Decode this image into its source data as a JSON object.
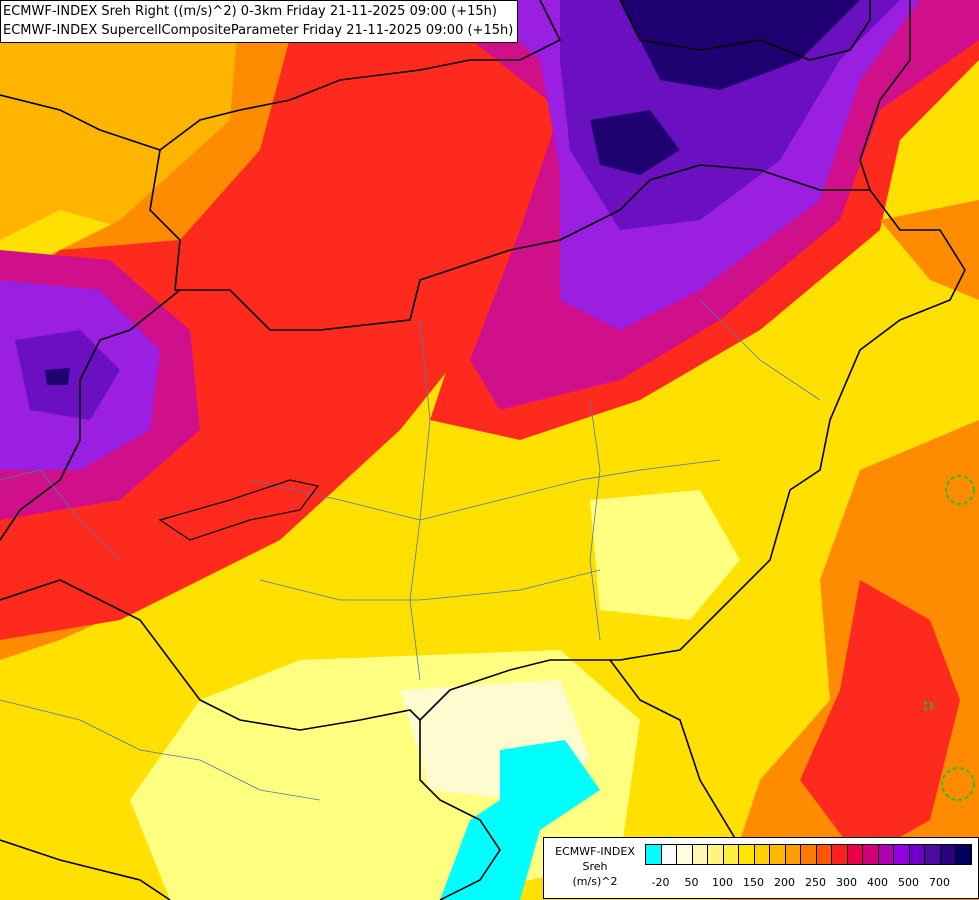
{
  "titles": {
    "line1": "ECMWF-INDEX Sreh Right ((m/s)^2) 0-3km Friday 21-11-2025 09:00 (+15h)",
    "line2": "ECMWF-INDEX SupercellCompositeParameter Friday 21-11-2025 09:00 (+15h)"
  },
  "legend": {
    "name_lines": [
      "ECMWF-INDEX",
      "Sreh",
      "(m/s)^2"
    ],
    "colors": [
      "#00ffff",
      "#ffffff",
      "#fffde0",
      "#fff8b0",
      "#fff480",
      "#ffee40",
      "#ffe600",
      "#ffd000",
      "#ffb800",
      "#ff9c00",
      "#ff7a00",
      "#ff5500",
      "#ff2020",
      "#e8004a",
      "#d0007a",
      "#b000b0",
      "#9000e0",
      "#7000c8",
      "#4b0aa0",
      "#2a0080",
      "#000060"
    ],
    "labels": [
      "-20",
      "50",
      "100",
      "150",
      "200",
      "250",
      "300",
      "400",
      "500",
      "700"
    ]
  },
  "map_colors": {
    "very_high": "#1e0070",
    "high": "#6a10c0",
    "violet": "#9a1fe0",
    "magenta": "#d0108a",
    "red": "#ff2a1e",
    "orange": "#ff8c00",
    "amber": "#ffb400",
    "yellow": "#ffe000",
    "pale": "#ffff80",
    "cream": "#fffbd0",
    "cyan": "#00ffff",
    "border": "#000000",
    "subborder": "#4a78b8",
    "scp": "#20c020"
  }
}
